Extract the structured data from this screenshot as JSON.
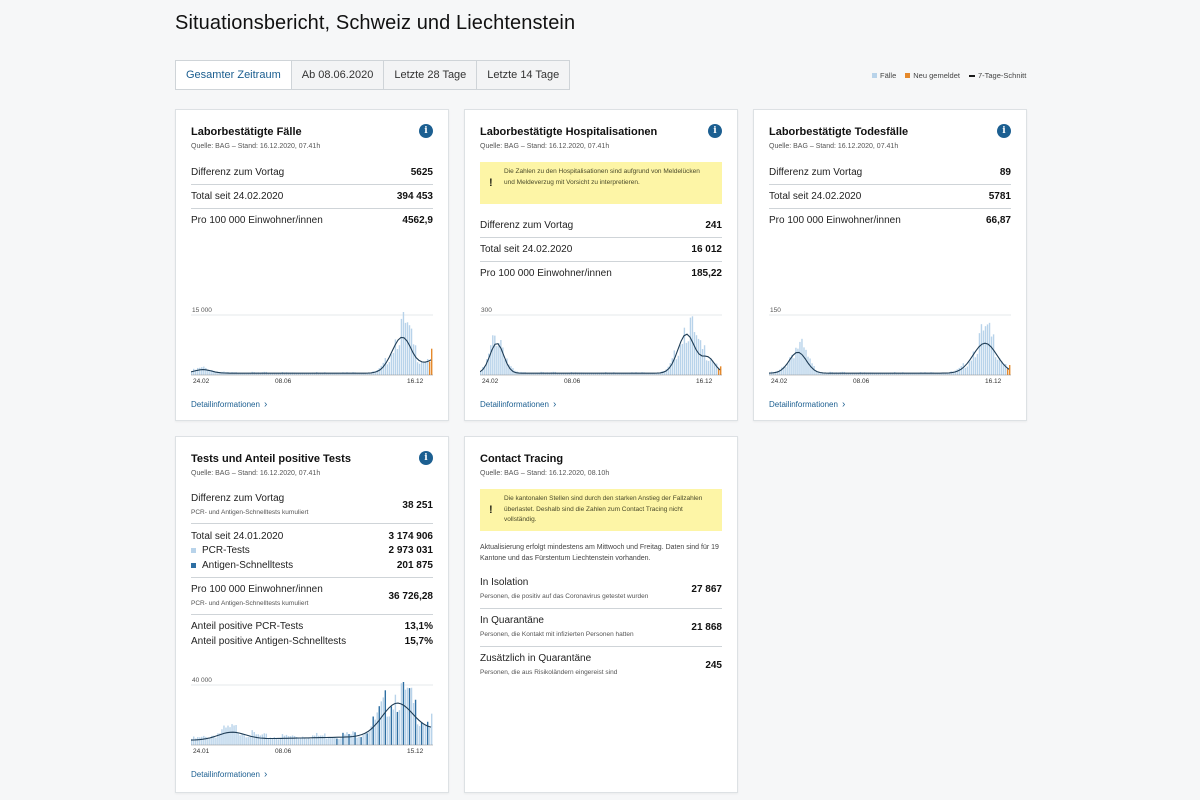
{
  "page": {
    "title": "Situationsbericht, Schweiz und Liechtenstein"
  },
  "tabs": [
    {
      "label": "Gesamter Zeitraum",
      "active": true
    },
    {
      "label": "Ab 08.06.2020",
      "active": false
    },
    {
      "label": "Letzte 28 Tage",
      "active": false
    },
    {
      "label": "Letzte 14 Tage",
      "active": false
    }
  ],
  "legend": {
    "cases": "Fälle",
    "new": "Neu gemeldet",
    "avg": "7-Tage-Schnitt",
    "colors": {
      "cases": "#b8d3ea",
      "new": "#e5892c",
      "avg": "#1a1a1a"
    }
  },
  "cards": {
    "cases": {
      "title": "Laborbestätigte Fälle",
      "source": "Quelle: BAG – Stand: 16.12.2020, 07.41h",
      "rows": [
        {
          "label": "Differenz zum Vortag",
          "value": "5625"
        },
        {
          "label": "Total seit 24.02.2020",
          "value": "394 453"
        },
        {
          "label": "Pro 100 000 Einwohner/innen",
          "value": "4562,9"
        }
      ],
      "chart": {
        "ymax_label": "15 000",
        "x_labels": [
          "24.02",
          "08.06",
          "16.12"
        ]
      },
      "link": "Detailinformationen"
    },
    "hosp": {
      "title": "Laborbestätigte Hospitalisationen",
      "source": "Quelle: BAG – Stand: 16.12.2020, 07.41h",
      "warning": "Die Zahlen zu den Hospitalisationen sind aufgrund von Meldelücken und Meldeverzug mit Vorsicht zu interpretieren.",
      "rows": [
        {
          "label": "Differenz zum Vortag",
          "value": "241"
        },
        {
          "label": "Total seit 24.02.2020",
          "value": "16 012"
        },
        {
          "label": "Pro 100 000 Einwohner/innen",
          "value": "185,22"
        }
      ],
      "chart": {
        "ymax_label": "300",
        "x_labels": [
          "24.02",
          "08.06",
          "16.12"
        ]
      },
      "link": "Detailinformationen"
    },
    "deaths": {
      "title": "Laborbestätigte Todesfälle",
      "source": "Quelle: BAG – Stand: 16.12.2020, 07.41h",
      "rows": [
        {
          "label": "Differenz zum Vortag",
          "value": "89"
        },
        {
          "label": "Total seit 24.02.2020",
          "value": "5781"
        },
        {
          "label": "Pro 100 000 Einwohner/innen",
          "value": "66,87"
        }
      ],
      "chart": {
        "ymax_label": "150",
        "x_labels": [
          "24.02",
          "08.06",
          "16.12"
        ]
      },
      "link": "Detailinformationen"
    },
    "tests": {
      "title": "Tests und Anteil positive Tests",
      "source": "Quelle: BAG – Stand: 16.12.2020, 07.41h",
      "diff_label": "Differenz zum Vortag",
      "diff_sub": "PCR- und Antigen-Schnelltests kumuliert",
      "diff_value": "38 251",
      "total_label": "Total seit 24.01.2020",
      "total_value": "3 174 906",
      "pcr_label": "PCR-Tests",
      "pcr_value": "2 973 031",
      "antigen_label": "Antigen-Schnelltests",
      "antigen_value": "201 875",
      "per100k_label": "Pro 100 000 Einwohner/innen",
      "per100k_sub": "PCR- und Antigen-Schnelltests kumuliert",
      "per100k_value": "36 726,28",
      "pos_pcr_label": "Anteil positive PCR-Tests",
      "pos_pcr_value": "13,1%",
      "pos_ag_label": "Anteil positive Antigen-Schnelltests",
      "pos_ag_value": "15,7%",
      "chart": {
        "ymax_label": "40 000",
        "x_labels": [
          "24.01",
          "08.06",
          "15.12"
        ]
      },
      "link": "Detailinformationen"
    },
    "tracing": {
      "title": "Contact Tracing",
      "source": "Quelle: BAG – Stand: 16.12.2020, 08.10h",
      "warning": "Die kantonalen Stellen sind durch den starken Anstieg der Fallzahlen überlastet. Deshalb sind die Zahlen zum Contact Tracing nicht vollständig.",
      "note": "Aktualisierung erfolgt mindestens am Mittwoch und Freitag. Daten sind für 19 Kantone und das Fürstentum Liechtenstein vorhanden.",
      "isolation_label": "In Isolation",
      "isolation_sub": "Personen, die positiv auf das Coronavirus getestet wurden",
      "isolation_value": "27 867",
      "quarantine_label": "In Quarantäne",
      "quarantine_sub": "Personen, die Kontakt mit infizierten Personen hatten",
      "quarantine_value": "21 868",
      "extra_label": "Zusätzlich in Quarantäne",
      "extra_sub": "Personen, die aus Risikoländern eingereist sind",
      "extra_value": "245"
    }
  }
}
